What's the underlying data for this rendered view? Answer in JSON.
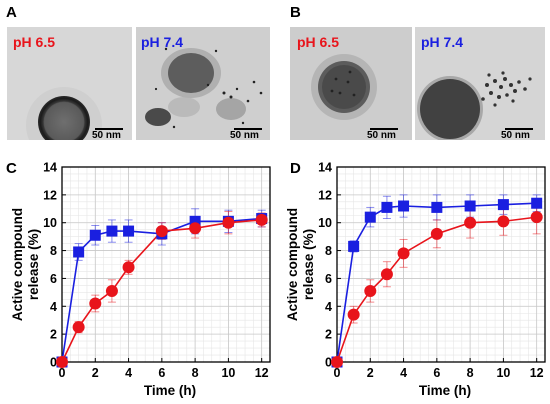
{
  "panels": {
    "A": {
      "letter": "A",
      "left_label": "pH 6.5",
      "right_label": "pH 7.4",
      "left_scale": "50 nm",
      "right_scale": "50 nm"
    },
    "B": {
      "letter": "B",
      "left_label": "pH 6.5",
      "right_label": "pH 7.4",
      "left_scale": "50 nm",
      "right_scale": "50 nm"
    },
    "C": {
      "letter": "C"
    },
    "D": {
      "letter": "D"
    }
  },
  "colors": {
    "ph65": "#e8141b",
    "ph74": "#1a1fe0"
  },
  "chart_data": [
    {
      "type": "line",
      "panel": "C",
      "xlabel": "Time (h)",
      "ylabel": "Active compound release (%)",
      "xlim": [
        0,
        12.5
      ],
      "ylim": [
        0,
        14
      ],
      "xticks": [
        0,
        2,
        4,
        6,
        8,
        10,
        12
      ],
      "yticks": [
        0,
        2,
        4,
        6,
        8,
        10,
        12,
        14
      ],
      "grid": true,
      "series": [
        {
          "marker": "square",
          "color": "#1a1fe0",
          "x": [
            0,
            1,
            2,
            3,
            4,
            6,
            8,
            10,
            12
          ],
          "y": [
            0,
            7.9,
            9.1,
            9.4,
            9.4,
            9.2,
            10.1,
            10.1,
            10.3
          ],
          "err": [
            0,
            0.6,
            0.7,
            0.8,
            0.8,
            0.8,
            0.9,
            0.8,
            0.6
          ]
        },
        {
          "marker": "circle",
          "color": "#e8141b",
          "x": [
            0,
            1,
            2,
            3,
            4,
            6,
            8,
            10,
            12
          ],
          "y": [
            0,
            2.5,
            4.2,
            5.1,
            6.8,
            9.4,
            9.6,
            10.0,
            10.2
          ],
          "err": [
            0,
            0.4,
            0.6,
            0.8,
            0.5,
            0.6,
            0.7,
            0.8,
            0.5
          ]
        }
      ]
    },
    {
      "type": "line",
      "panel": "D",
      "xlabel": "Time (h)",
      "ylabel": "Active compound release (%)",
      "xlim": [
        0,
        12.5
      ],
      "ylim": [
        0,
        14
      ],
      "xticks": [
        0,
        2,
        4,
        6,
        8,
        10,
        12
      ],
      "yticks": [
        0,
        2,
        4,
        6,
        8,
        10,
        12,
        14
      ],
      "grid": true,
      "series": [
        {
          "marker": "square",
          "color": "#1a1fe0",
          "x": [
            0,
            1,
            2,
            3,
            4,
            6,
            8,
            10,
            12
          ],
          "y": [
            0,
            8.3,
            10.4,
            11.1,
            11.2,
            11.1,
            11.2,
            11.3,
            11.4
          ],
          "err": [
            0,
            0.4,
            0.7,
            0.8,
            0.8,
            0.9,
            0.8,
            0.7,
            0.6
          ]
        },
        {
          "marker": "circle",
          "color": "#e8141b",
          "x": [
            0,
            1,
            2,
            3,
            4,
            6,
            8,
            10,
            12
          ],
          "y": [
            0,
            3.4,
            5.1,
            6.3,
            7.8,
            9.2,
            10.0,
            10.1,
            10.4
          ],
          "err": [
            0,
            0.6,
            0.8,
            0.9,
            1.0,
            1.0,
            1.1,
            1.0,
            1.2
          ]
        }
      ]
    }
  ]
}
